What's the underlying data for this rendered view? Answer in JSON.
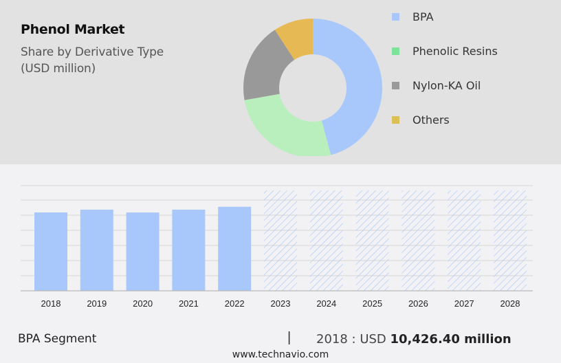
{
  "header": {
    "title": "Phenol Market",
    "subtitle_line1": "Share by Derivative Type",
    "subtitle_line2": "(USD million)"
  },
  "legend": [
    {
      "label": "BPA",
      "color": "#a8c8fc"
    },
    {
      "label": "Phenolic Resins",
      "color": "#7de39a"
    },
    {
      "label": "Nylon-KA Oil",
      "color": "#999999"
    },
    {
      "label": "Others",
      "color": "#dcc055"
    }
  ],
  "footer": {
    "segment": "BPA Segment",
    "separator": "|",
    "year_prefix": "2018 : USD ",
    "value": "10,426.40 million",
    "url": "www.technavio.com"
  },
  "chart_data": [
    {
      "type": "pie",
      "title": "Phenol Market — Share by Derivative Type (USD million)",
      "donut": true,
      "categories": [
        "BPA",
        "Phenolic Resins",
        "Nylon-KA Oil",
        "Others"
      ],
      "values": [
        45.8,
        26.4,
        18.6,
        9.2
      ],
      "colors": [
        "#a8c8fc",
        "#b9efbd",
        "#999999",
        "#e6b955"
      ],
      "legend_position": "right"
    },
    {
      "type": "bar",
      "title": "BPA Segment",
      "categories": [
        "2018",
        "2019",
        "2020",
        "2021",
        "2022",
        "2023",
        "2024",
        "2025",
        "2026",
        "2027",
        "2028"
      ],
      "values": [
        10426.4,
        10800,
        10420,
        10800,
        11180,
        null,
        null,
        null,
        null,
        null,
        null
      ],
      "forecast_years": [
        "2023",
        "2024",
        "2025",
        "2026",
        "2027",
        "2028"
      ],
      "annotation": "2018 : USD 10,426.40 million",
      "grid": true,
      "bar_color": "#a8c8fc",
      "ylabel": "",
      "xlabel": ""
    }
  ]
}
